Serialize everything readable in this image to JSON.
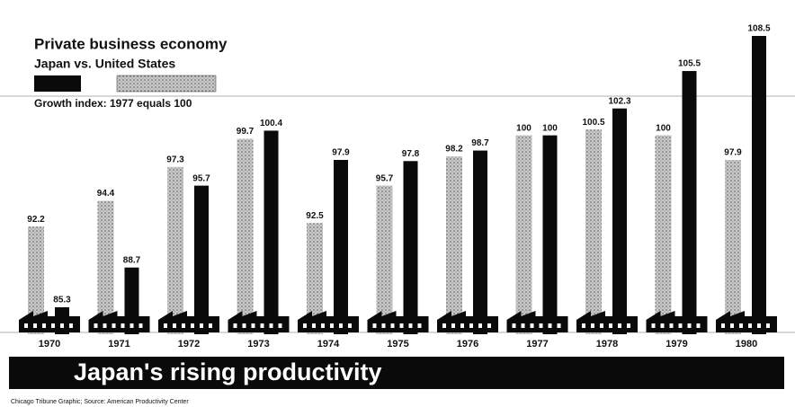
{
  "chart_data": {
    "type": "bar",
    "title": "Private business economy",
    "subtitle": "Japan vs. United States",
    "note": "Growth index: 1977 equals 100",
    "banner": "Japan's rising productivity",
    "source": "Chicago Tribune Graphic; Source: American Productivity Center",
    "categories": [
      "1970",
      "1971",
      "1972",
      "1973",
      "1974",
      "1975",
      "1976",
      "1977",
      "1978",
      "1979",
      "1980"
    ],
    "series": [
      {
        "color": "#c9c9c9",
        "values": [
          92.2,
          94.4,
          97.3,
          99.7,
          92.5,
          95.7,
          98.2,
          100,
          100.5,
          100,
          97.9
        ]
      },
      {
        "color": "#0a0a0a",
        "values": [
          85.3,
          88.7,
          95.7,
          100.4,
          97.9,
          97.8,
          98.7,
          100,
          102.3,
          105.5,
          108.5
        ]
      }
    ]
  }
}
